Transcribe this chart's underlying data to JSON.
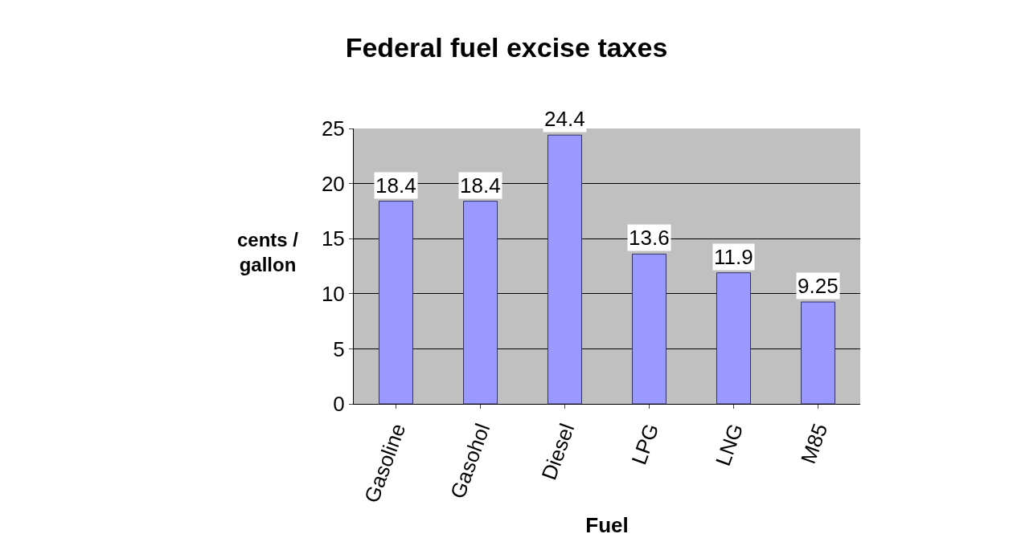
{
  "chart_data": {
    "type": "bar",
    "title": "Federal fuel excise taxes",
    "xlabel": "Fuel",
    "ylabel": "cents / gallon",
    "categories": [
      "Gasoline",
      "Gasohol",
      "Diesel",
      "LPG",
      "LNG",
      "M85"
    ],
    "values": [
      18.4,
      18.4,
      24.4,
      13.6,
      11.9,
      9.25
    ],
    "color": "#9999ff",
    "ylim": [
      0,
      25
    ],
    "yticks": [
      0,
      5,
      10,
      15,
      20,
      25
    ],
    "grid": "y",
    "data_labels": true,
    "legend": false
  }
}
